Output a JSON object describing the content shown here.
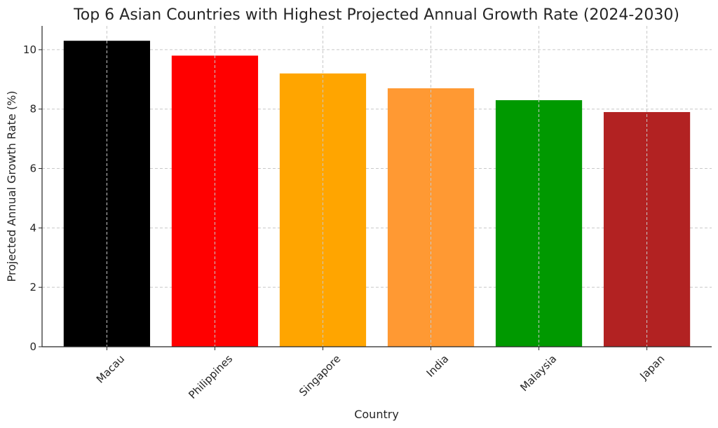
{
  "chart_data": {
    "type": "bar",
    "title": "Top 6 Asian Countries with Highest Projected Annual Growth Rate (2024-2030)",
    "xlabel": "Country",
    "ylabel": "Projected Annual Growth Rate (%)",
    "categories": [
      "Macau",
      "Philippines",
      "Singapore",
      "India",
      "Malaysia",
      "Japan"
    ],
    "values": [
      10.3,
      9.8,
      9.2,
      8.7,
      8.3,
      7.9
    ],
    "colors": [
      "#000000",
      "#ff0000",
      "#ffa500",
      "#ff9933",
      "#009900",
      "#b22222"
    ],
    "ylim": [
      0,
      10.8
    ],
    "yticks": [
      0,
      2,
      4,
      6,
      8,
      10
    ],
    "grid": true,
    "legend": "none"
  }
}
